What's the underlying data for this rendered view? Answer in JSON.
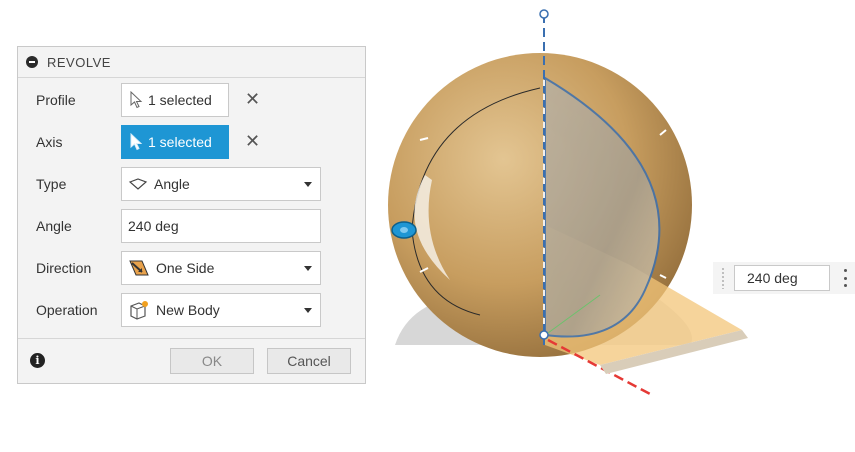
{
  "dialog": {
    "title": "REVOLVE",
    "rows": {
      "profile": {
        "label": "Profile",
        "value": "1 selected",
        "clear": "✕"
      },
      "axis": {
        "label": "Axis",
        "value": "1 selected",
        "clear": "✕"
      },
      "type": {
        "label": "Type",
        "value": "Angle"
      },
      "angle": {
        "label": "Angle",
        "value": "240 deg"
      },
      "direction": {
        "label": "Direction",
        "value": "One Side"
      },
      "operation": {
        "label": "Operation",
        "value": "New Body"
      }
    },
    "footer": {
      "info": "i",
      "ok": "OK",
      "cancel": "Cancel"
    }
  },
  "viewport": {
    "angle_manipulator_value": "240 deg"
  },
  "colors": {
    "accent": "#1e96d4",
    "body": "#c9a46a",
    "axis": "#3a6fb0",
    "profile_fill": "#f3c67a",
    "x_axis": "#e53935"
  },
  "icons": [
    "collapse-icon",
    "cursor-arrow-icon",
    "clear-icon",
    "angle-type-icon",
    "direction-one-side-icon",
    "new-body-icon",
    "info-icon",
    "grip-icon",
    "more-menu-icon"
  ]
}
